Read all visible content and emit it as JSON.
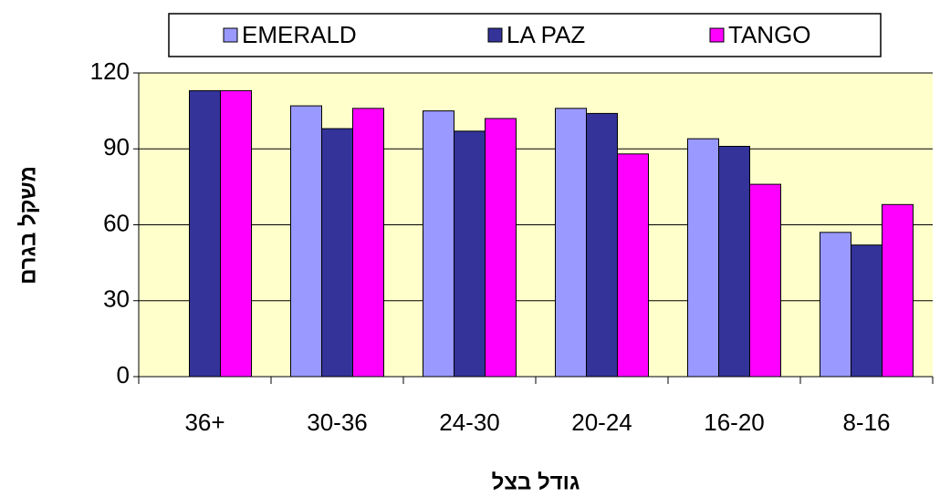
{
  "chart_data": {
    "type": "bar",
    "categories": [
      "36+",
      "30-36",
      "24-30",
      "20-24",
      "16-20",
      "8-16"
    ],
    "series": [
      {
        "name": "EMERALD",
        "color": "#9999ff",
        "values": [
          null,
          107,
          105,
          106,
          94,
          57
        ]
      },
      {
        "name": "LA PAZ",
        "color": "#333399",
        "values": [
          113,
          98,
          97,
          104,
          91,
          52
        ]
      },
      {
        "name": "TANGO",
        "color": "#ff00ff",
        "values": [
          113,
          106,
          102,
          88,
          76,
          68
        ]
      }
    ],
    "ylim": [
      0,
      120
    ],
    "yticks": [
      0,
      30,
      60,
      90,
      120
    ],
    "grid": true,
    "x_label": "גודל בצל",
    "y_label": "משקל בגרם",
    "legend": "top",
    "background": "#ffffcc"
  }
}
